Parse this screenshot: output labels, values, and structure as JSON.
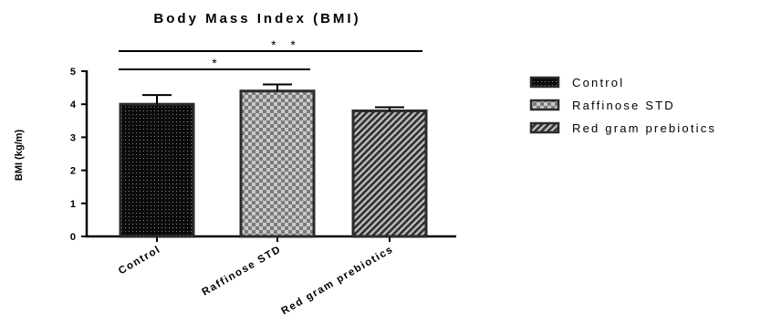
{
  "chart_data": {
    "type": "bar",
    "title": "Body Mass Index (BMI)",
    "xlabel": "",
    "ylabel": "BMI (kg/m)",
    "ylim": [
      0,
      5
    ],
    "yticks": [
      "0",
      "1",
      "2",
      "3",
      "4",
      "5"
    ],
    "categories": [
      "Control",
      "Raffinose STD",
      "Red gram prebiotics"
    ],
    "values": [
      4.0,
      4.4,
      3.8
    ],
    "errors": [
      0.28,
      0.2,
      0.11
    ],
    "grid": false,
    "legend": {
      "placement": "right",
      "entries": [
        "Control",
        "Raffinose STD",
        "Red gram prebiotics"
      ]
    },
    "significance": [
      {
        "from": "Control",
        "to": "Red gram prebiotics",
        "label": "* *"
      },
      {
        "from": "Control",
        "to": "Raffinose STD",
        "label": "*"
      }
    ],
    "colors": {
      "bar_outline": "#2b2b2b",
      "control_fill": "#111111",
      "raffinose_fill": "#9a9a9a",
      "redgram_fill": "#4a4a4a"
    }
  }
}
